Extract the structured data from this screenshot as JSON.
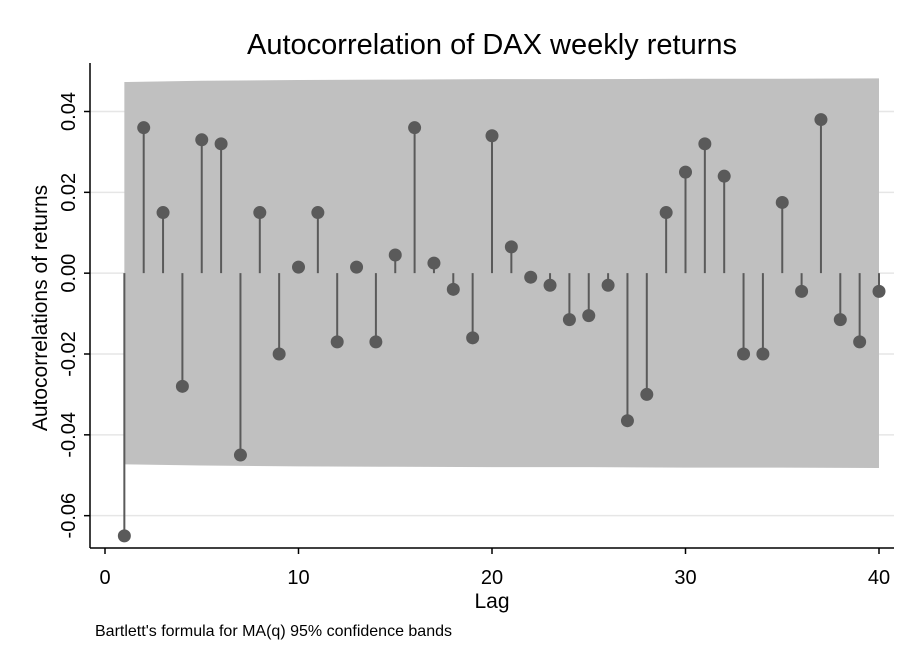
{
  "colors": {
    "background": "#ffffff",
    "band": "#c0c0c0",
    "gridline": "#e6e6e6",
    "marker": "#5a5a5a",
    "spike": "#5a5a5a",
    "axis": "#000000"
  },
  "chart_data": {
    "type": "scatter",
    "subtype": "autocorrelation-spike-plot",
    "title": "Autocorrelation of DAX weekly returns",
    "xlabel": "Lag",
    "ylabel": "Autocorrelations of returns",
    "note": "Bartlett's formula for MA(q) 95% confidence bands",
    "xlim": [
      0,
      40
    ],
    "ylim": [
      -0.068,
      0.052
    ],
    "x_ticks": [
      {
        "value": 0,
        "label": "0"
      },
      {
        "value": 10,
        "label": "10"
      },
      {
        "value": 20,
        "label": "20"
      },
      {
        "value": 30,
        "label": "30"
      },
      {
        "value": 40,
        "label": "40"
      }
    ],
    "y_ticks": [
      {
        "value": -0.06,
        "label": "-0.06"
      },
      {
        "value": -0.04,
        "label": "-0.04"
      },
      {
        "value": -0.02,
        "label": "-0.02"
      },
      {
        "value": 0.0,
        "label": "0.00"
      },
      {
        "value": 0.02,
        "label": "0.02"
      },
      {
        "value": 0.04,
        "label": "0.04"
      }
    ],
    "grid": true,
    "series": [
      {
        "x": [
          1,
          2,
          3,
          4,
          5,
          6,
          7,
          8,
          9,
          10,
          11,
          12,
          13,
          14,
          15,
          16,
          17,
          18,
          19,
          20,
          21,
          22,
          23,
          24,
          25,
          26,
          27,
          28,
          29,
          30,
          31,
          32,
          33,
          34,
          35,
          36,
          37,
          38,
          39,
          40
        ],
        "values": [
          -0.065,
          0.036,
          0.015,
          -0.028,
          0.033,
          0.032,
          -0.045,
          0.015,
          -0.02,
          0.0015,
          0.015,
          -0.017,
          0.0015,
          -0.017,
          0.0045,
          0.036,
          0.0025,
          -0.004,
          -0.016,
          0.034,
          0.0065,
          -0.001,
          -0.003,
          -0.0115,
          -0.0105,
          -0.003,
          -0.0365,
          -0.03,
          0.015,
          0.025,
          0.032,
          0.024,
          -0.02,
          -0.02,
          0.0175,
          -0.0045,
          0.038,
          -0.0115,
          -0.017,
          -0.0045
        ]
      }
    ],
    "confidence_band": {
      "level": "95%",
      "lag": [
        1,
        5,
        10,
        15,
        20,
        25,
        30,
        35,
        40
      ],
      "upper": [
        0.0473,
        0.0476,
        0.0478,
        0.0479,
        0.048,
        0.048,
        0.0481,
        0.0481,
        0.0482
      ],
      "lower": [
        -0.0473,
        -0.0476,
        -0.0478,
        -0.0479,
        -0.048,
        -0.048,
        -0.0481,
        -0.0481,
        -0.0482
      ]
    }
  }
}
